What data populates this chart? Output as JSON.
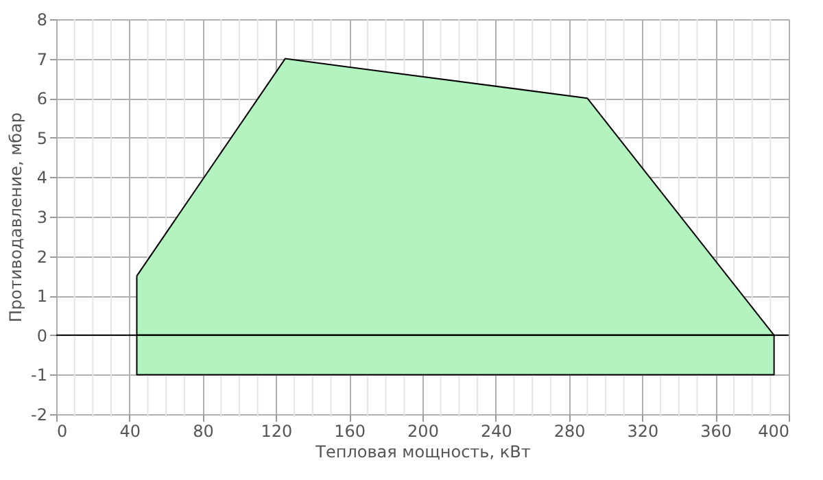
{
  "chart_data": {
    "type": "area",
    "xlabel": "Тепловая мощность, кВт",
    "ylabel": "Противодавление, мбар",
    "x": [
      44,
      125,
      290,
      392
    ],
    "series": [
      {
        "color": "#b2f3c0",
        "values": [
          1.5,
          7,
          6,
          0
        ]
      },
      {
        "color": "#b2f3c0",
        "x": [
          44,
          392
        ],
        "values": [
          -1,
          -1
        ]
      }
    ],
    "xlim": [
      0,
      400
    ],
    "xticks": [
      0,
      40,
      80,
      120,
      160,
      200,
      240,
      280,
      320,
      360,
      400
    ],
    "ylim": [
      -2,
      8
    ],
    "yticks": [
      -2,
      -1,
      0,
      1,
      2,
      3,
      4,
      5,
      6,
      7,
      8
    ],
    "ref_lines": [
      {
        "axis": "y",
        "value": 0,
        "color": "#000000"
      }
    ],
    "grid": true
  }
}
